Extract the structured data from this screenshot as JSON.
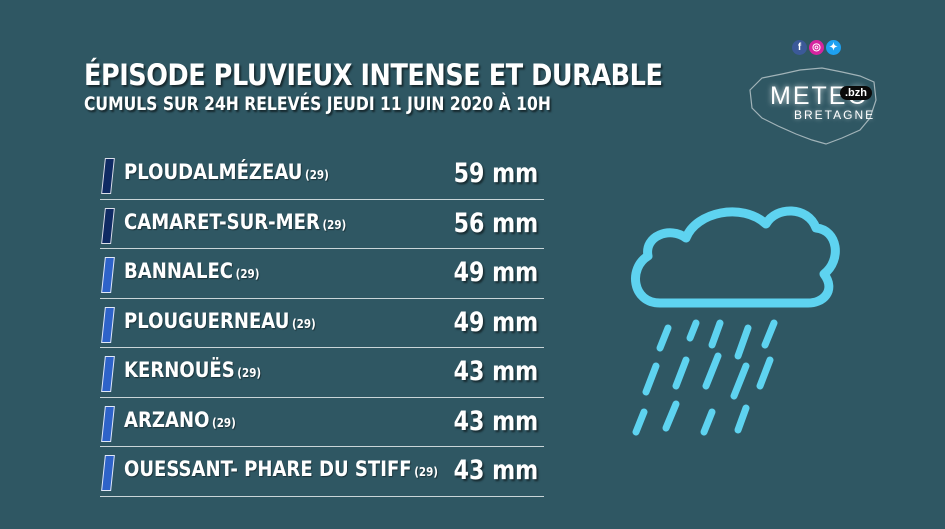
{
  "header": {
    "title": "ÉPISODE PLUVIEUX INTENSE ET DURABLE",
    "subtitle": "CUMULS SUR 24H RELEVÉS JEUDI 11 JUIN 2020 À 10H"
  },
  "colors": {
    "background": "#2f5763",
    "rain_icon": "#5ed3f0",
    "marker_dark": "#0f2a63",
    "marker_light": "#2e63c9"
  },
  "rows": [
    {
      "city": "PLOUDALMÉZEAU",
      "dept": "(29)",
      "value": "59 mm",
      "marker": "dark"
    },
    {
      "city": "CAMARET-SUR-MER",
      "dept": "(29)",
      "value": "56 mm",
      "marker": "dark"
    },
    {
      "city": "BANNALEC",
      "dept": "(29)",
      "value": "49 mm",
      "marker": "light"
    },
    {
      "city": "PLOUGUERNEAU",
      "dept": "(29)",
      "value": "49 mm",
      "marker": "light"
    },
    {
      "city": "KERNOUËS",
      "dept": "(29)",
      "value": "43 mm",
      "marker": "light"
    },
    {
      "city": "ARZANO",
      "dept": "(29)",
      "value": "43 mm",
      "marker": "light"
    },
    {
      "city": "OUESSANT- PHARE DU STIFF",
      "dept": "(29)",
      "value": "43 mm",
      "marker": "light"
    }
  ],
  "social": [
    {
      "icon": "facebook-icon",
      "glyph": "f",
      "color": "#3b5998"
    },
    {
      "icon": "instagram-icon",
      "glyph": "◎",
      "color": "#d6249f"
    },
    {
      "icon": "twitter-icon",
      "glyph": "✦",
      "color": "#1da1f2"
    }
  ],
  "logo": {
    "meteo": "METEO",
    "bzh": ".bzh",
    "bretagne": "BRETAGNE"
  }
}
